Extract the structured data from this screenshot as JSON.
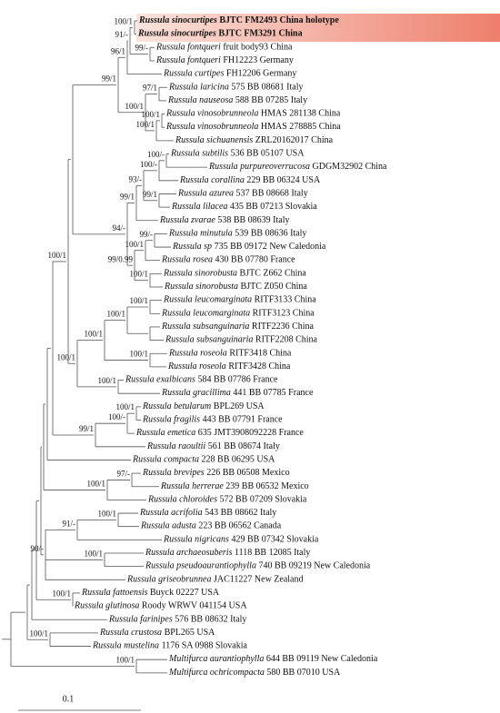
{
  "leaves": [
    {
      "name": "Russula sinocurtipes",
      "voucher": "BJTC FM2493 China holotype"
    },
    {
      "name": "Russula sinocurtipes",
      "voucher": "BJTC FM3291 China"
    },
    {
      "name": "Russula fontqueri",
      "voucher": "fruit body93 China"
    },
    {
      "name": "Russula fontqueri",
      "voucher": "FH12223 Germany"
    },
    {
      "name": "Russula curtipes",
      "voucher": "FH12206 Germany"
    },
    {
      "name": "Russula laricina",
      "voucher": "575 BB 08681 Italy"
    },
    {
      "name": "Russula nauseosa",
      "voucher": "588 BB 07285 Italy"
    },
    {
      "name": "Russula vinosobrunneola",
      "voucher": "HMAS 281138 China"
    },
    {
      "name": "Russula vinosobrunneola",
      "voucher": "HMAS 278885 China"
    },
    {
      "name": "Russula sichuanensis",
      "voucher": "ZRL20162017 China"
    },
    {
      "name": "Russula subtilis",
      "voucher": "536 BB 05107 USA"
    },
    {
      "name": "Russula purpureoverrucosa",
      "voucher": "GDGM32902 China"
    },
    {
      "name": "Russula corallina",
      "voucher": "229 BB 06324 USA"
    },
    {
      "name": "Russula azurea",
      "voucher": "537 BB 08668 Italy"
    },
    {
      "name": "Russula lilacea",
      "voucher": "435 BB 07213 Slovakia"
    },
    {
      "name": "Russula zvarae",
      "voucher": "538 BB 08639 Italy"
    },
    {
      "name": "Russula minutula",
      "voucher": "539 BB 08636 Italy"
    },
    {
      "name": "Russula sp",
      "voucher": "735 BB 09172 New Caledonia"
    },
    {
      "name": "Russula rosea",
      "voucher": "430 BB 07780 France"
    },
    {
      "name": "Russula sinorobusta",
      "voucher": "BJTC Z662 China"
    },
    {
      "name": "Russula sinorobusta",
      "voucher": "BJTC Z050 China"
    },
    {
      "name": "Russula leucomarginata",
      "voucher": "RITF3133 China"
    },
    {
      "name": "Russula leucomarginata",
      "voucher": "RITF3123 China"
    },
    {
      "name": "Russula subsanguinaria",
      "voucher": "RITF2236 China"
    },
    {
      "name": "Russula subsanguinaria",
      "voucher": "RITF2208 China"
    },
    {
      "name": "Russula roseola",
      "voucher": "RITF3418 China"
    },
    {
      "name": "Russula roseola",
      "voucher": "RITF3428 China"
    },
    {
      "name": "Russula exalbicans",
      "voucher": "584 BB 07786 France"
    },
    {
      "name": "Russula gracillima",
      "voucher": "441 BB 07785 France"
    },
    {
      "name": "Russula betularum",
      "voucher": "BPL269 USA"
    },
    {
      "name": "Russula fragilis",
      "voucher": "443 BB 07791 France"
    },
    {
      "name": "Russula emetica",
      "voucher": "635 JMT3908092228 France"
    },
    {
      "name": "Russula raoultii",
      "voucher": "561 BB 08674 Italy"
    },
    {
      "name": "Russula compacta",
      "voucher": "228 BB 06295 USA"
    },
    {
      "name": "Russula brevipes",
      "voucher": "226 BB 06508 Mexico"
    },
    {
      "name": "Russula herrerae",
      "voucher": "239 BB 06532 Mexico"
    },
    {
      "name": "Russula chloroides",
      "voucher": "572 BB 07209 Slovakia"
    },
    {
      "name": "Russula acrifolia",
      "voucher": "543 BB 08662 Italy"
    },
    {
      "name": "Russula adusta",
      "voucher": "223 BB 06562 Canada"
    },
    {
      "name": "Russula nigricans",
      "voucher": "429 BB 07342 Slovakia"
    },
    {
      "name": "Russula archaeosuberis",
      "voucher": "1118 BB 12085 Italy"
    },
    {
      "name": "Russula pseudoaurantiophylla",
      "voucher": "740 BB 09219 New Caledonia"
    },
    {
      "name": "Russula griseobrunnea",
      "voucher": "JAC11227 New Zealand"
    },
    {
      "name": "Russula fattoensis",
      "voucher": "Buyck 02227 USA"
    },
    {
      "name": "Russula glutinosa",
      "voucher": "Roody WRWV 041154 USA"
    },
    {
      "name": "Russula farinipes",
      "voucher": "576 BB 08632 Italy"
    },
    {
      "name": "Russula crustosa",
      "voucher": "BPL265 USA"
    },
    {
      "name": "Russula mustelina",
      "voucher": "1176 SA 0988 Slovakia"
    },
    {
      "name": "Multifurca aurantiophylla",
      "voucher": "644 BB 09119 New Caledonia"
    },
    {
      "name": "Multifurca ochricompacta",
      "voucher": "580 BB 07010 USA"
    }
  ],
  "supports": [
    "96/1",
    "100/1",
    "91/-",
    "99/1",
    "99/-",
    "100/1",
    "97/1",
    "100/1",
    "100/1",
    "100/-",
    "100/-",
    "93/-",
    "99/1",
    "99/1",
    "94/-",
    "99/-",
    "100/1",
    "99/0.99",
    "100/1",
    "100/1",
    "100/1",
    "100/1",
    "100/1",
    "100/1",
    "100/1",
    "100/1",
    "100/-",
    "100/1",
    "99/1",
    "97/-",
    "100/1",
    "100/1",
    "91/-",
    "100/1",
    "90/-",
    "100/1",
    "100/1",
    "100/1"
  ],
  "scale_bar": "0.1"
}
